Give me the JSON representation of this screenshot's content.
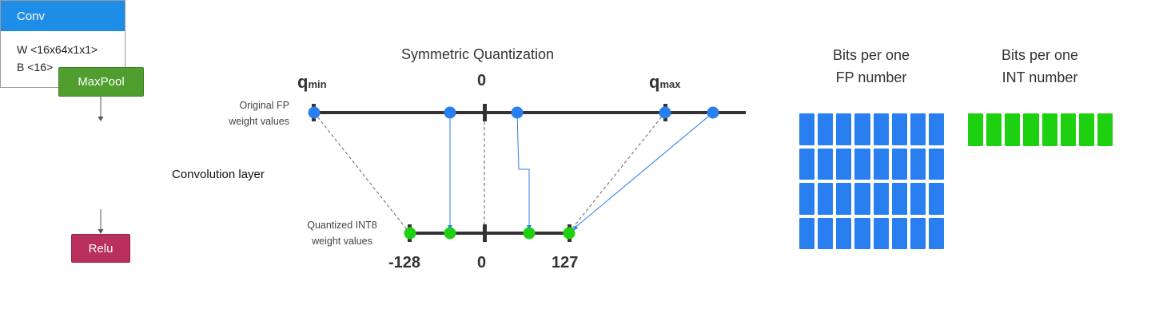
{
  "network": {
    "maxpool_label": "MaxPool",
    "conv_label": "Conv",
    "conv_weight": "W <16x64x1x1>",
    "conv_bias": "B <16>",
    "relu_label": "Relu",
    "layer_caption": "Convolution layer"
  },
  "quantization": {
    "title": "Symmetric Quantization",
    "fp_axis_label_line1": "Original FP",
    "fp_axis_label_line2": "weight values",
    "int_axis_label_line1": "Quantized INT8",
    "int_axis_label_line2": "weight values",
    "q_letter": "q",
    "qmin_sub": "min",
    "qmax_sub": "max",
    "fp_zero": "0",
    "int_min": "-128",
    "int_zero": "0",
    "int_max": "127"
  },
  "bits": {
    "fp_label_line1": "Bits per one",
    "fp_label_line2": "FP number",
    "int_label_line1": "Bits per one",
    "int_label_line2": "INT number",
    "fp_bit_count": 32,
    "int_bit_count": 8
  },
  "colors": {
    "fp_point": "#2a7ff0",
    "int_point": "#1ed110",
    "conv_header": "#1e8de8",
    "maxpool": "#4f9e2e",
    "relu": "#b9305e"
  }
}
